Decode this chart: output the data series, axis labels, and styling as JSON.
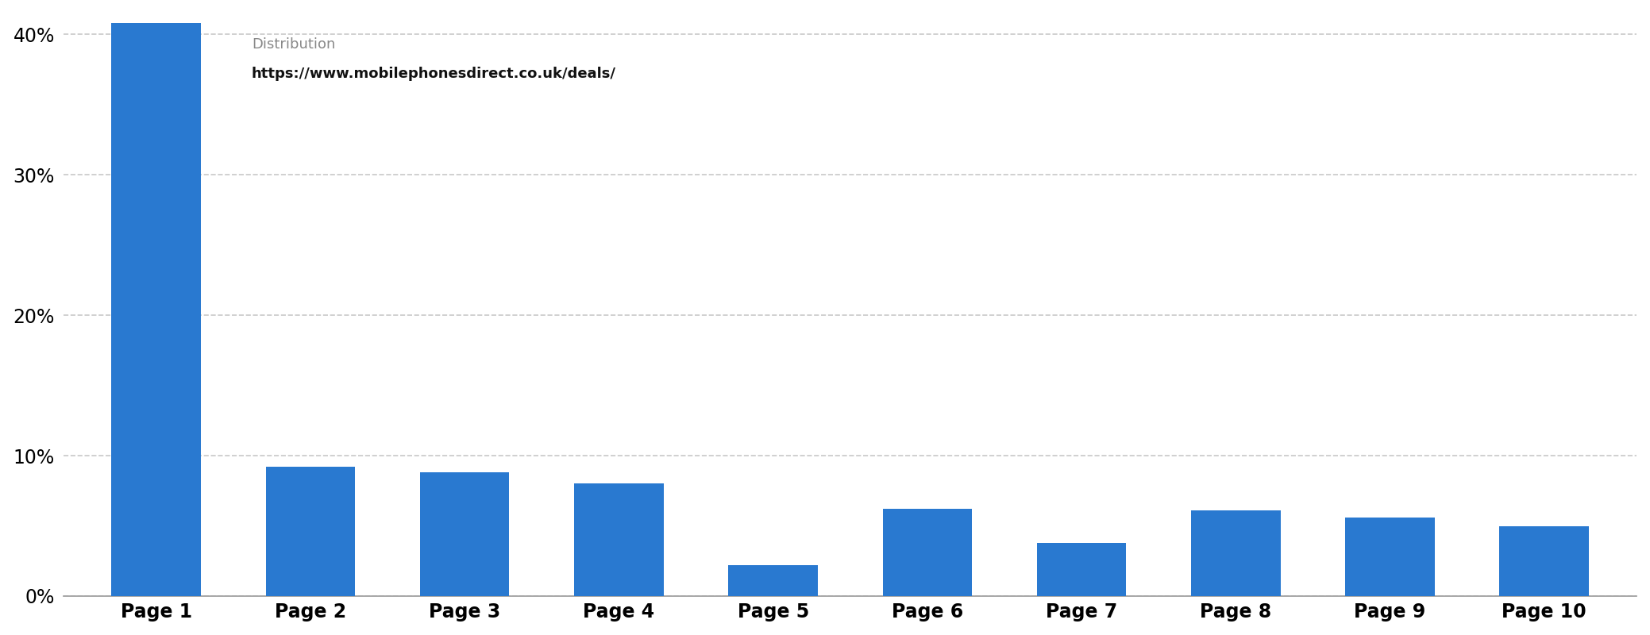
{
  "categories": [
    "Page 1",
    "Page 2",
    "Page 3",
    "Page 4",
    "Page 5",
    "Page 6",
    "Page 7",
    "Page 8",
    "Page 9",
    "Page 10"
  ],
  "values": [
    40.8,
    9.2,
    8.8,
    8.0,
    2.2,
    6.2,
    3.8,
    6.1,
    5.6,
    5.0
  ],
  "bar_color": "#2979d0",
  "background_color": "#ffffff",
  "yticks": [
    0,
    10,
    20,
    30,
    40
  ],
  "ylim": [
    0,
    41.5
  ],
  "grid_color": "#c8c8c8",
  "tooltip_title": "Distribution",
  "tooltip_url": "https://www.mobilephonesdirect.co.uk/deals/",
  "tooltip_bg": "#dcdce4",
  "tick_fontsize": 17,
  "xlabel_fontsize": 17,
  "bar_width": 0.58
}
